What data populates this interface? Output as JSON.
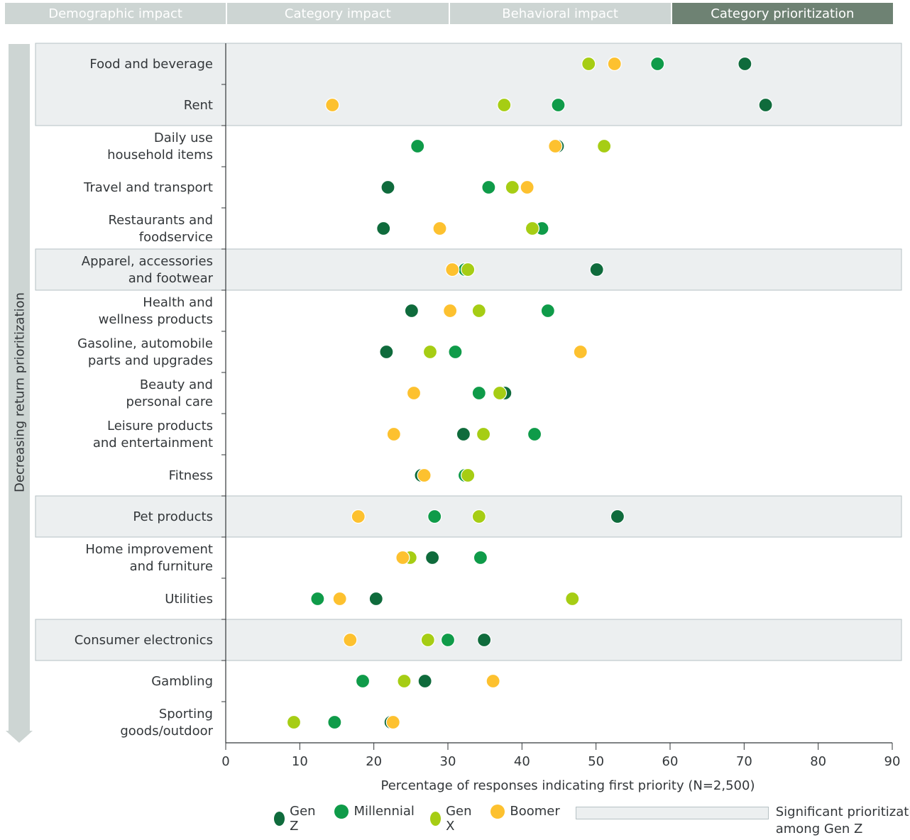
{
  "tabs": [
    {
      "label": "Demographic impact",
      "active": false
    },
    {
      "label": "Category impact",
      "active": false
    },
    {
      "label": "Behavioral impact",
      "active": false
    },
    {
      "label": "Category prioritization",
      "active": true
    }
  ],
  "side_label": "Decreasing return prioritization",
  "legend": {
    "series": [
      {
        "name": "Gen Z",
        "color": "#0f6b3c"
      },
      {
        "name": "Millennial",
        "color": "#0f9b49"
      },
      {
        "name": "Gen X",
        "color": "#a6cd14"
      },
      {
        "name": "Boomer",
        "color": "#fdc12f"
      }
    ],
    "significance_label": "Significant prioritization among Gen Z",
    "significance_fill": "#eceff0"
  },
  "chart_data": {
    "type": "scatter",
    "xlabel": "Percentage of responses indicating first priority (N=2,500)",
    "ylabel": "Decreasing return prioritization",
    "xlim": [
      0,
      90
    ],
    "xticks": [
      0,
      10,
      20,
      30,
      40,
      50,
      60,
      70,
      80,
      90
    ],
    "grid": false,
    "legend_position": "bottom",
    "categories": [
      {
        "label": [
          "Food and beverage"
        ],
        "highlight": true
      },
      {
        "label": [
          "Rent"
        ],
        "highlight": true
      },
      {
        "label": [
          "Daily use",
          "household items"
        ],
        "highlight": false
      },
      {
        "label": [
          "Travel and transport"
        ],
        "highlight": false
      },
      {
        "label": [
          "Restaurants and",
          "foodservice"
        ],
        "highlight": false
      },
      {
        "label": [
          "Apparel, accessories",
          "and footwear"
        ],
        "highlight": true
      },
      {
        "label": [
          "Health and",
          "wellness products"
        ],
        "highlight": false
      },
      {
        "label": [
          "Gasoline, automobile",
          "parts and upgrades"
        ],
        "highlight": false
      },
      {
        "label": [
          "Beauty and",
          "personal care"
        ],
        "highlight": false
      },
      {
        "label": [
          "Leisure products",
          "and entertainment"
        ],
        "highlight": false
      },
      {
        "label": [
          "Fitness"
        ],
        "highlight": false
      },
      {
        "label": [
          "Pet products"
        ],
        "highlight": true
      },
      {
        "label": [
          "Home improvement",
          "and furniture"
        ],
        "highlight": false
      },
      {
        "label": [
          "Utilities"
        ],
        "highlight": false
      },
      {
        "label": [
          "Consumer electronics"
        ],
        "highlight": true
      },
      {
        "label": [
          "Gambling"
        ],
        "highlight": false
      },
      {
        "label": [
          "Sporting",
          "goods/outdoor"
        ],
        "highlight": false
      }
    ],
    "series": [
      {
        "name": "Gen Z",
        "color": "#0f6b3c",
        "values": [
          70.1,
          72.9,
          44.8,
          21.9,
          21.3,
          50.1,
          25.1,
          21.7,
          37.7,
          32.1,
          26.4,
          52.9,
          27.9,
          20.3,
          34.9,
          26.9,
          22.3
        ]
      },
      {
        "name": "Millennial",
        "color": "#0f9b49",
        "values": [
          58.3,
          44.9,
          25.9,
          35.5,
          42.7,
          32.3,
          43.5,
          31.0,
          34.2,
          41.7,
          32.3,
          28.2,
          34.4,
          12.4,
          30.0,
          18.5,
          14.7
        ]
      },
      {
        "name": "Gen X",
        "color": "#a6cd14",
        "values": [
          49.0,
          37.6,
          51.1,
          38.7,
          41.4,
          32.7,
          34.2,
          27.6,
          37.0,
          34.8,
          32.7,
          34.2,
          24.9,
          46.8,
          27.3,
          24.1,
          9.2
        ]
      },
      {
        "name": "Boomer",
        "color": "#fdc12f",
        "values": [
          52.5,
          14.4,
          44.5,
          40.7,
          28.9,
          30.6,
          30.3,
          47.9,
          25.4,
          22.7,
          26.8,
          17.9,
          23.9,
          15.4,
          16.8,
          36.1,
          22.6
        ]
      }
    ]
  }
}
